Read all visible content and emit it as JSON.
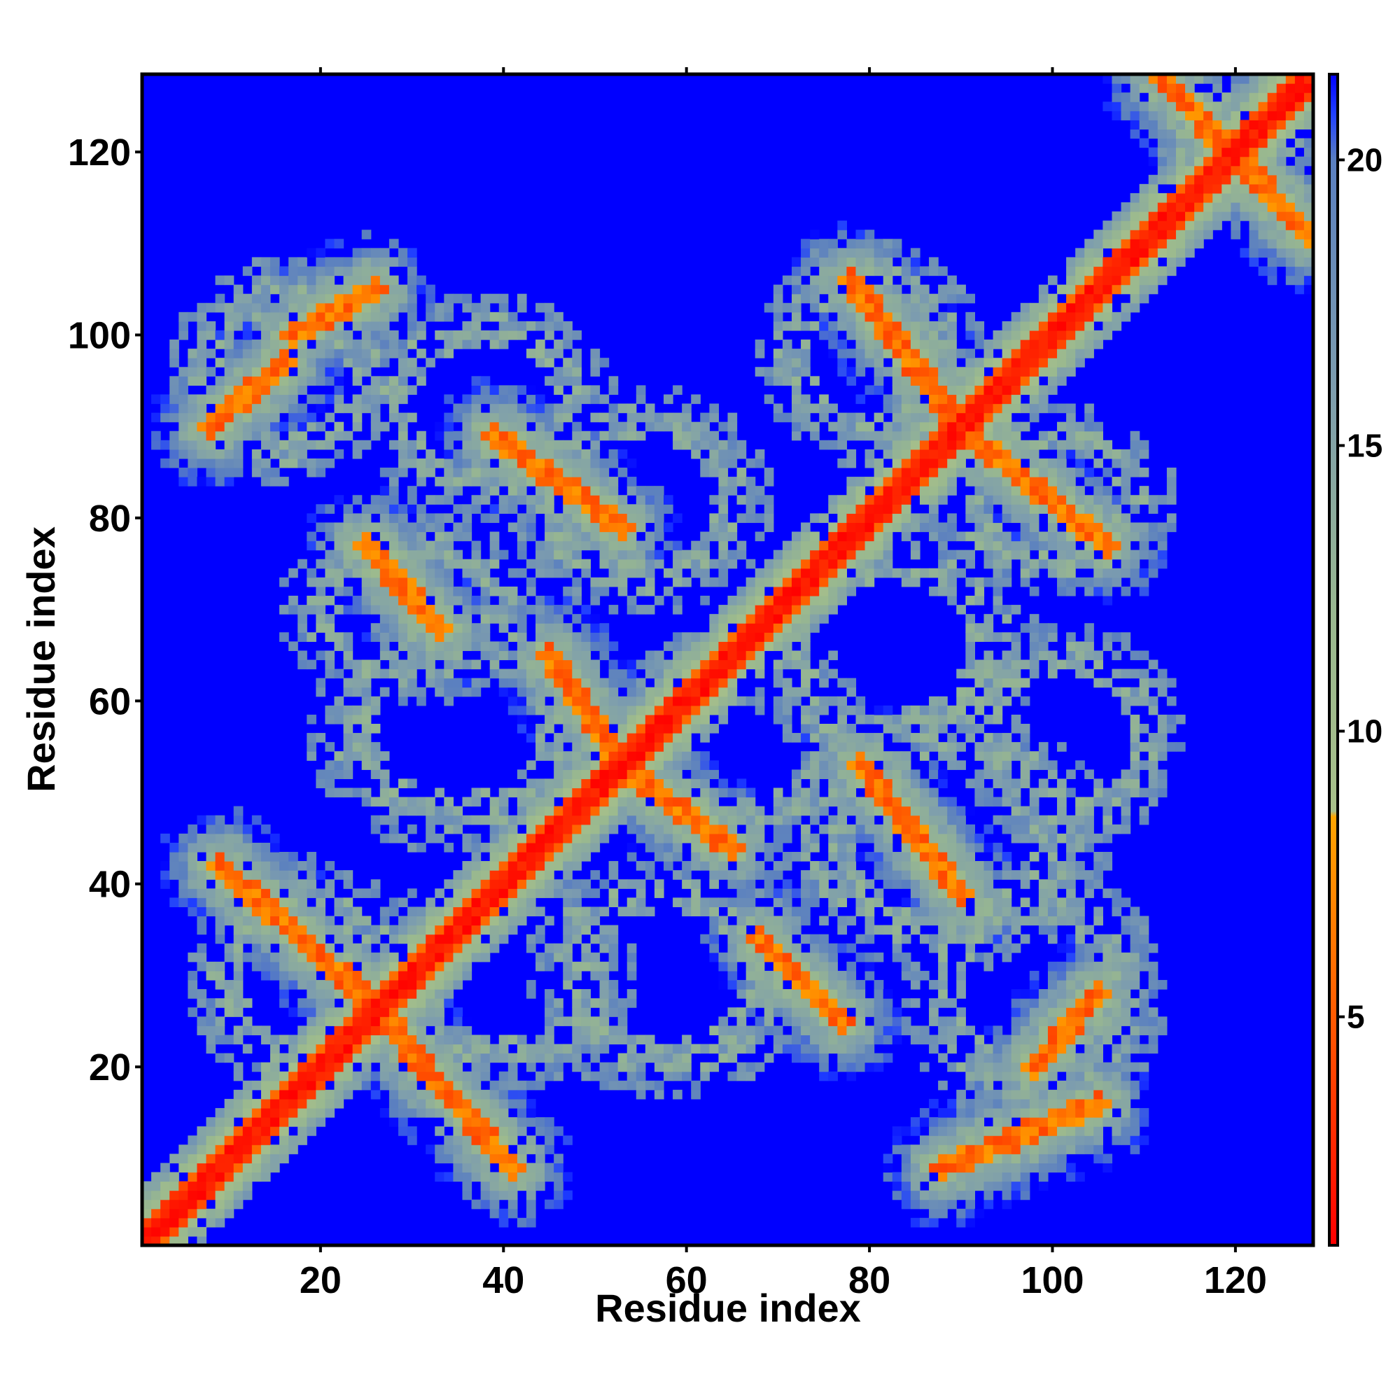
{
  "chart_data": {
    "type": "heatmap",
    "title": "",
    "xlabel": "Residue index",
    "ylabel": "Residue index",
    "xlim": [
      1,
      128
    ],
    "ylim": [
      1,
      128
    ],
    "x_ticks": [
      20,
      40,
      60,
      80,
      100,
      120
    ],
    "x_tick_labels": [
      "20",
      "40",
      "60",
      "80",
      "100",
      "120"
    ],
    "y_ticks": [
      20,
      40,
      60,
      80,
      100,
      120
    ],
    "y_tick_labels": [
      "20",
      "40",
      "60",
      "80",
      "100",
      "120"
    ],
    "colorbar": {
      "range": [
        1,
        21.5
      ],
      "ticks": [
        5,
        10,
        15,
        20
      ],
      "tick_labels": [
        "5",
        "10",
        "15",
        "20"
      ],
      "stops": [
        {
          "value": 1,
          "color": "#ff0000"
        },
        {
          "value": 5,
          "color": "#ff5a00"
        },
        {
          "value": 8.5,
          "color": "#ffa500"
        },
        {
          "value": 8.6,
          "color": "#a8c08a"
        },
        {
          "value": 12,
          "color": "#99b88f"
        },
        {
          "value": 16,
          "color": "#7d9dae"
        },
        {
          "value": 20,
          "color": "#5a7fc0"
        },
        {
          "value": 20.8,
          "color": "#2040ff"
        },
        {
          "value": 21.5,
          "color": "#0000ff"
        }
      ]
    },
    "background_value": 21.5,
    "pattern": {
      "diagonal_band": {
        "from": 1,
        "to": 128
      },
      "antidiagonal_contacts": [
        {
          "x": [
            9,
            28
          ],
          "y": [
            42,
            25
          ]
        },
        {
          "x": [
            27,
            41
          ],
          "y": [
            25,
            9
          ]
        },
        {
          "x": [
            45,
            53
          ],
          "y": [
            65,
            53
          ]
        },
        {
          "x": [
            54,
            65
          ],
          "y": [
            52,
            44
          ]
        },
        {
          "x": [
            68,
            77
          ],
          "y": [
            34,
            25
          ]
        },
        {
          "x": [
            79,
            90
          ],
          "y": [
            53,
            39
          ]
        },
        {
          "x": [
            88,
            105
          ],
          "y": [
            9,
            16
          ]
        },
        {
          "x": [
            98,
            105
          ],
          "y": [
            20,
            28
          ]
        },
        {
          "x": [
            8,
            16
          ],
          "y": [
            90,
            97
          ]
        },
        {
          "x": [
            17,
            26
          ],
          "y": [
            100,
            105
          ]
        },
        {
          "x": [
            25,
            33
          ],
          "y": [
            77,
            68
          ]
        },
        {
          "x": [
            39,
            53
          ],
          "y": [
            89,
            79
          ]
        },
        {
          "x": [
            78,
            90
          ],
          "y": [
            106,
            90
          ]
        },
        {
          "x": [
            91,
            106
          ],
          "y": [
            89,
            77
          ]
        },
        {
          "x": [
            112,
            128
          ],
          "y": [
            128,
            111
          ]
        }
      ],
      "contact_regions": [
        {
          "cx": 40,
          "cy": 30,
          "rx": 14,
          "ry": 12
        },
        {
          "cx": 35,
          "cy": 57,
          "rx": 16,
          "ry": 13
        },
        {
          "cx": 58,
          "cy": 30,
          "rx": 15,
          "ry": 13
        },
        {
          "cx": 66,
          "cy": 56,
          "rx": 14,
          "ry": 12
        },
        {
          "cx": 88,
          "cy": 45,
          "rx": 18,
          "ry": 14
        },
        {
          "cx": 98,
          "cy": 28,
          "rx": 14,
          "ry": 14
        },
        {
          "cx": 16,
          "cy": 96,
          "rx": 12,
          "ry": 12
        },
        {
          "cx": 38,
          "cy": 92,
          "rx": 14,
          "ry": 12
        },
        {
          "cx": 55,
          "cy": 82,
          "rx": 14,
          "ry": 12
        },
        {
          "cx": 80,
          "cy": 98,
          "rx": 12,
          "ry": 12
        },
        {
          "cx": 100,
          "cy": 82,
          "rx": 13,
          "ry": 10
        },
        {
          "cx": 82,
          "cy": 66,
          "rx": 16,
          "ry": 13
        },
        {
          "cx": 18,
          "cy": 30,
          "rx": 12,
          "ry": 13
        },
        {
          "cx": 30,
          "cy": 70,
          "rx": 14,
          "ry": 10
        },
        {
          "cx": 102,
          "cy": 56,
          "rx": 12,
          "ry": 12
        },
        {
          "cx": 120,
          "cy": 120,
          "rx": 8,
          "ry": 8
        }
      ]
    }
  }
}
